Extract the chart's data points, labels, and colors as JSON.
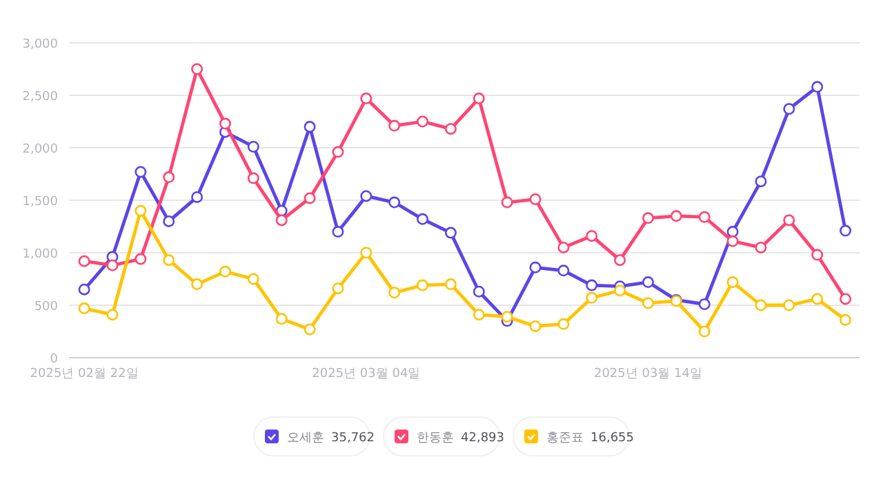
{
  "chart_data": {
    "type": "line",
    "x": [
      "2025-02-22",
      "2025-02-23",
      "2025-02-24",
      "2025-02-25",
      "2025-02-26",
      "2025-02-27",
      "2025-02-28",
      "2025-03-01",
      "2025-03-02",
      "2025-03-03",
      "2025-03-04",
      "2025-03-05",
      "2025-03-06",
      "2025-03-07",
      "2025-03-08",
      "2025-03-09",
      "2025-03-10",
      "2025-03-11",
      "2025-03-12",
      "2025-03-13",
      "2025-03-14",
      "2025-03-15",
      "2025-03-16",
      "2025-03-17",
      "2025-03-18",
      "2025-03-19",
      "2025-03-20",
      "2025-03-21"
    ],
    "series": [
      {
        "name": "오세훈",
        "color": "#5b45e8",
        "values": [
          650,
          960,
          1770,
          1300,
          1530,
          2150,
          2010,
          1400,
          2200,
          1200,
          1540,
          1480,
          1320,
          1190,
          630,
          350,
          860,
          830,
          690,
          680,
          720,
          550,
          510,
          1200,
          1680,
          2370,
          2580,
          1210
        ]
      },
      {
        "name": "한동훈",
        "color": "#ff4572",
        "values": [
          920,
          880,
          940,
          1720,
          2750,
          2230,
          1710,
          1310,
          1520,
          1960,
          2470,
          2210,
          2250,
          2180,
          2470,
          1480,
          1510,
          1050,
          1160,
          930,
          1330,
          1350,
          1340,
          1110,
          1050,
          1310,
          980,
          560
        ]
      },
      {
        "name": "홍준표",
        "color": "#ffc300",
        "values": [
          470,
          410,
          1400,
          930,
          700,
          820,
          750,
          370,
          270,
          660,
          1000,
          620,
          690,
          700,
          410,
          390,
          300,
          320,
          570,
          640,
          520,
          540,
          250,
          720,
          500,
          500,
          560,
          360
        ]
      }
    ],
    "totals": [
      "35,762",
      "42,893",
      "16,655"
    ],
    "xlim": [
      "2025-02-21T11:00",
      "2025-03-21T12:00"
    ],
    "xticks": [
      {
        "value": "2025-02-22",
        "label": "2025년 02월 22일"
      },
      {
        "value": "2025-03-04",
        "label": "2025년 03월 04일"
      },
      {
        "value": "2025-03-14",
        "label": "2025년 03월 14일"
      }
    ],
    "ylim": [
      0,
      3000
    ],
    "yticks": [
      {
        "value": 0,
        "label": "0"
      },
      {
        "value": 500,
        "label": "500"
      },
      {
        "value": 1000,
        "label": "1,000"
      },
      {
        "value": 1500,
        "label": "1,500"
      },
      {
        "value": 2000,
        "label": "2,000"
      },
      {
        "value": 2500,
        "label": "2,500"
      },
      {
        "value": 3000,
        "label": "3,000"
      }
    ],
    "grid": "y",
    "legend": "bottom",
    "marker": "circle",
    "line_style": "solid"
  }
}
